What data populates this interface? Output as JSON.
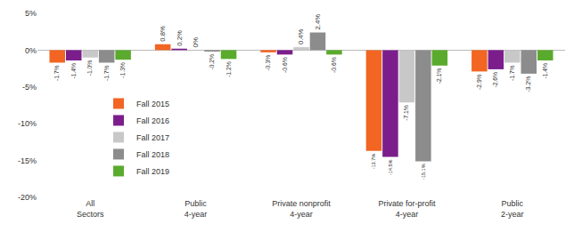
{
  "chart_data": {
    "type": "bar",
    "categories": [
      "All Sectors",
      "Public 4-year",
      "Private nonprofit 4-year",
      "Private for-profit 4-year",
      "Public 2-year"
    ],
    "series": [
      {
        "name": "Fall 2015",
        "color": "#f26522",
        "values": [
          -1.7,
          0.8,
          -0.3,
          -13.7,
          -2.9
        ],
        "value_labels": [
          "-1.7%",
          "0.8%",
          "-0.3%",
          "-13.7%",
          "-2.9%"
        ]
      },
      {
        "name": "Fall 2016",
        "color": "#7b1e8c",
        "values": [
          -1.4,
          0.2,
          -0.6,
          -14.5,
          -2.6
        ],
        "value_labels": [
          "-1.4%",
          "0.2%",
          "-0.6%",
          "-14.5%",
          "-2.6%"
        ]
      },
      {
        "name": "Fall 2017",
        "color": "#c8c8c8",
        "values": [
          -1.0,
          0,
          0.4,
          -7.1,
          -1.7
        ],
        "value_labels": [
          "-1.0%",
          "0%",
          "0.4%",
          "-7.1%",
          "-1.7%"
        ]
      },
      {
        "name": "Fall 2018",
        "color": "#8c8c8c",
        "values": [
          -1.7,
          -0.2,
          2.4,
          -15.1,
          -3.2
        ],
        "value_labels": [
          "-1.7%",
          "-0.2%",
          "2.4%",
          "-15.1%",
          "-3.2%"
        ]
      },
      {
        "name": "Fall 2019",
        "color": "#5aab2d",
        "values": [
          -1.3,
          -1.2,
          -0.6,
          -2.1,
          -1.4
        ],
        "value_labels": [
          "-1.3%",
          "-1.2%",
          "-0.6%",
          "-2.1%",
          "-1.4%"
        ]
      }
    ],
    "ylim": [
      -20,
      5
    ],
    "yticks": [
      {
        "value": 5,
        "label": "5%"
      },
      {
        "value": 0,
        "label": "0%"
      },
      {
        "value": -5,
        "label": "-5%"
      },
      {
        "value": -10,
        "label": "-10%"
      },
      {
        "value": -15,
        "label": "-15%"
      },
      {
        "value": -20,
        "label": "-20%"
      }
    ],
    "grid": false,
    "legend": "left",
    "data_labels": true
  }
}
